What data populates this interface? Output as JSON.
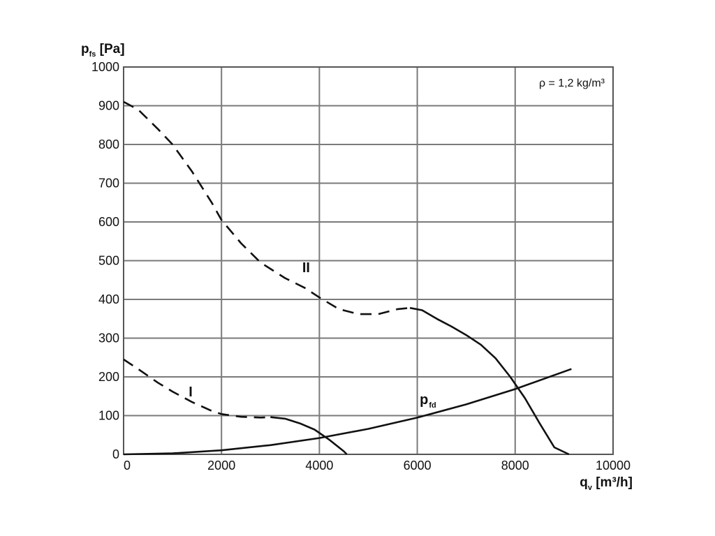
{
  "chart_data": {
    "type": "line",
    "ylabel_main": "p",
    "ylabel_sub": "fs",
    "ylabel_unit": " [Pa]",
    "xlabel_main": "q",
    "xlabel_sub": "v",
    "xlabel_unit": " [m³/h]",
    "annotation": "ρ = 1,2 kg/m³",
    "xlim": [
      0,
      10000
    ],
    "ylim": [
      0,
      1000
    ],
    "xticks": [
      0,
      2000,
      4000,
      6000,
      8000,
      10000
    ],
    "yticks": [
      0,
      100,
      200,
      300,
      400,
      500,
      600,
      700,
      800,
      900,
      1000
    ],
    "grid": true,
    "series": [
      {
        "label_main": "II",
        "label_sub": "",
        "label_at": [
          3650,
          470
        ],
        "segments": [
          {
            "style": "dashed",
            "points": [
              [
                0,
                910
              ],
              [
                300,
                890
              ],
              [
                700,
                840
              ],
              [
                1000,
                800
              ],
              [
                1400,
                730
              ],
              [
                1800,
                650
              ],
              [
                2000,
                605
              ],
              [
                2400,
                545
              ],
              [
                2800,
                495
              ],
              [
                3300,
                455
              ],
              [
                3700,
                430
              ],
              [
                4000,
                405
              ],
              [
                4400,
                375
              ],
              [
                4800,
                362
              ],
              [
                5200,
                362
              ],
              [
                5600,
                375
              ],
              [
                5850,
                378
              ]
            ]
          },
          {
            "style": "solid",
            "points": [
              [
                5850,
                378
              ],
              [
                6100,
                372
              ],
              [
                6400,
                350
              ],
              [
                6700,
                330
              ],
              [
                7000,
                308
              ],
              [
                7300,
                283
              ],
              [
                7600,
                248
              ],
              [
                7900,
                200
              ],
              [
                8200,
                145
              ],
              [
                8500,
                80
              ],
              [
                8800,
                18
              ],
              [
                9100,
                0
              ]
            ]
          }
        ]
      },
      {
        "label_main": "I",
        "label_sub": "",
        "label_at": [
          1330,
          150
        ],
        "segments": [
          {
            "style": "dashed",
            "points": [
              [
                0,
                245
              ],
              [
                300,
                220
              ],
              [
                700,
                185
              ],
              [
                1000,
                162
              ],
              [
                1400,
                135
              ],
              [
                1800,
                112
              ],
              [
                2000,
                104
              ],
              [
                2400,
                97
              ],
              [
                2800,
                95
              ],
              [
                3000,
                96
              ]
            ]
          },
          {
            "style": "solid",
            "points": [
              [
                3000,
                96
              ],
              [
                3300,
                92
              ],
              [
                3600,
                80
              ],
              [
                3900,
                64
              ],
              [
                4200,
                38
              ],
              [
                4500,
                8
              ],
              [
                4560,
                0
              ]
            ]
          }
        ]
      },
      {
        "label_main": "p",
        "label_sub": "fd",
        "label_at": [
          6050,
          130
        ],
        "segments": [
          {
            "style": "solid",
            "points": [
              [
                0,
                0
              ],
              [
                1000,
                2.6
              ],
              [
                2000,
                10.5
              ],
              [
                3000,
                23.7
              ],
              [
                4000,
                42.1
              ],
              [
                5000,
                65.8
              ],
              [
                6000,
                94.8
              ],
              [
                7000,
                129
              ],
              [
                8000,
                168.5
              ],
              [
                9150,
                220.4
              ]
            ]
          }
        ]
      }
    ]
  }
}
